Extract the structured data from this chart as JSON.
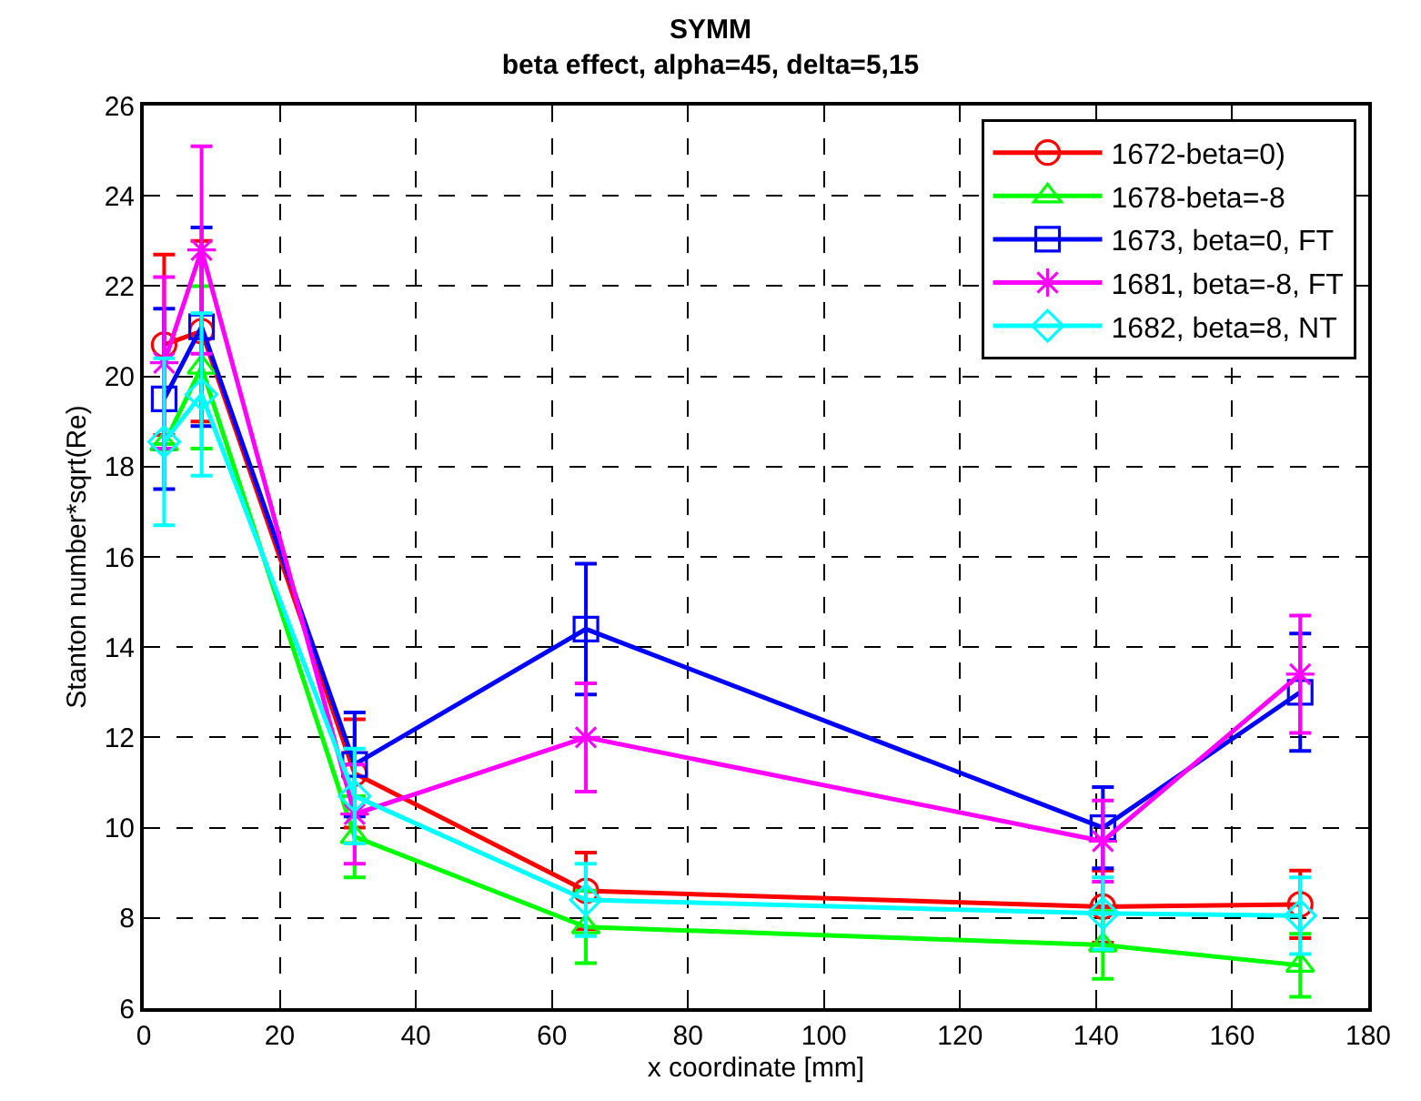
{
  "chart_data": {
    "type": "line",
    "title": "SYMM",
    "subtitle": "beta effect, alpha=45, delta=5,15",
    "xlabel": "x coordinate [mm]",
    "ylabel": "Stanton number*sqrt(Re)",
    "x": [
      3,
      8.5,
      31,
      65,
      141,
      170
    ],
    "xlim": [
      0,
      180
    ],
    "xticks": [
      0,
      20,
      40,
      60,
      80,
      100,
      120,
      140,
      160,
      180
    ],
    "ylim": [
      6,
      26
    ],
    "yticks": [
      6,
      8,
      10,
      12,
      14,
      16,
      18,
      20,
      22,
      24,
      26
    ],
    "grid": true,
    "legend": "top right",
    "line_style": "solid",
    "series": [
      {
        "name": "1672-beta=0)",
        "color": "#ff0000",
        "marker": "circle",
        "values": [
          20.7,
          21.0,
          11.2,
          8.6,
          8.25,
          8.3
        ],
        "errors": [
          2.0,
          2.0,
          1.2,
          0.85,
          0.8,
          0.75
        ]
      },
      {
        "name": "1678-beta=-8",
        "color": "#00ff00",
        "marker": "triangle",
        "values": [
          18.5,
          20.2,
          9.8,
          7.8,
          7.4,
          6.95
        ],
        "errors": [
          null,
          1.8,
          0.9,
          0.8,
          0.75,
          0.7
        ]
      },
      {
        "name": "1673, beta=0, FT",
        "color": "#0000ff",
        "marker": "square",
        "values": [
          19.5,
          21.1,
          11.4,
          14.4,
          10.0,
          13.0
        ],
        "errors": [
          2.0,
          2.2,
          1.15,
          1.45,
          0.9,
          1.3
        ]
      },
      {
        "name": "1681, beta=-8, FT",
        "color": "#ff00ff",
        "marker": "cross",
        "values": [
          20.3,
          22.8,
          10.3,
          12.0,
          9.7,
          13.4
        ],
        "errors": [
          1.9,
          2.3,
          1.1,
          1.2,
          0.9,
          1.3
        ]
      },
      {
        "name": "1682, beta=8, NT",
        "color": "#00ffff",
        "marker": "diamond",
        "values": [
          18.55,
          19.6,
          10.7,
          8.4,
          8.1,
          8.05
        ],
        "errors": [
          1.85,
          1.8,
          1.05,
          0.8,
          0.8,
          0.85
        ]
      }
    ]
  }
}
